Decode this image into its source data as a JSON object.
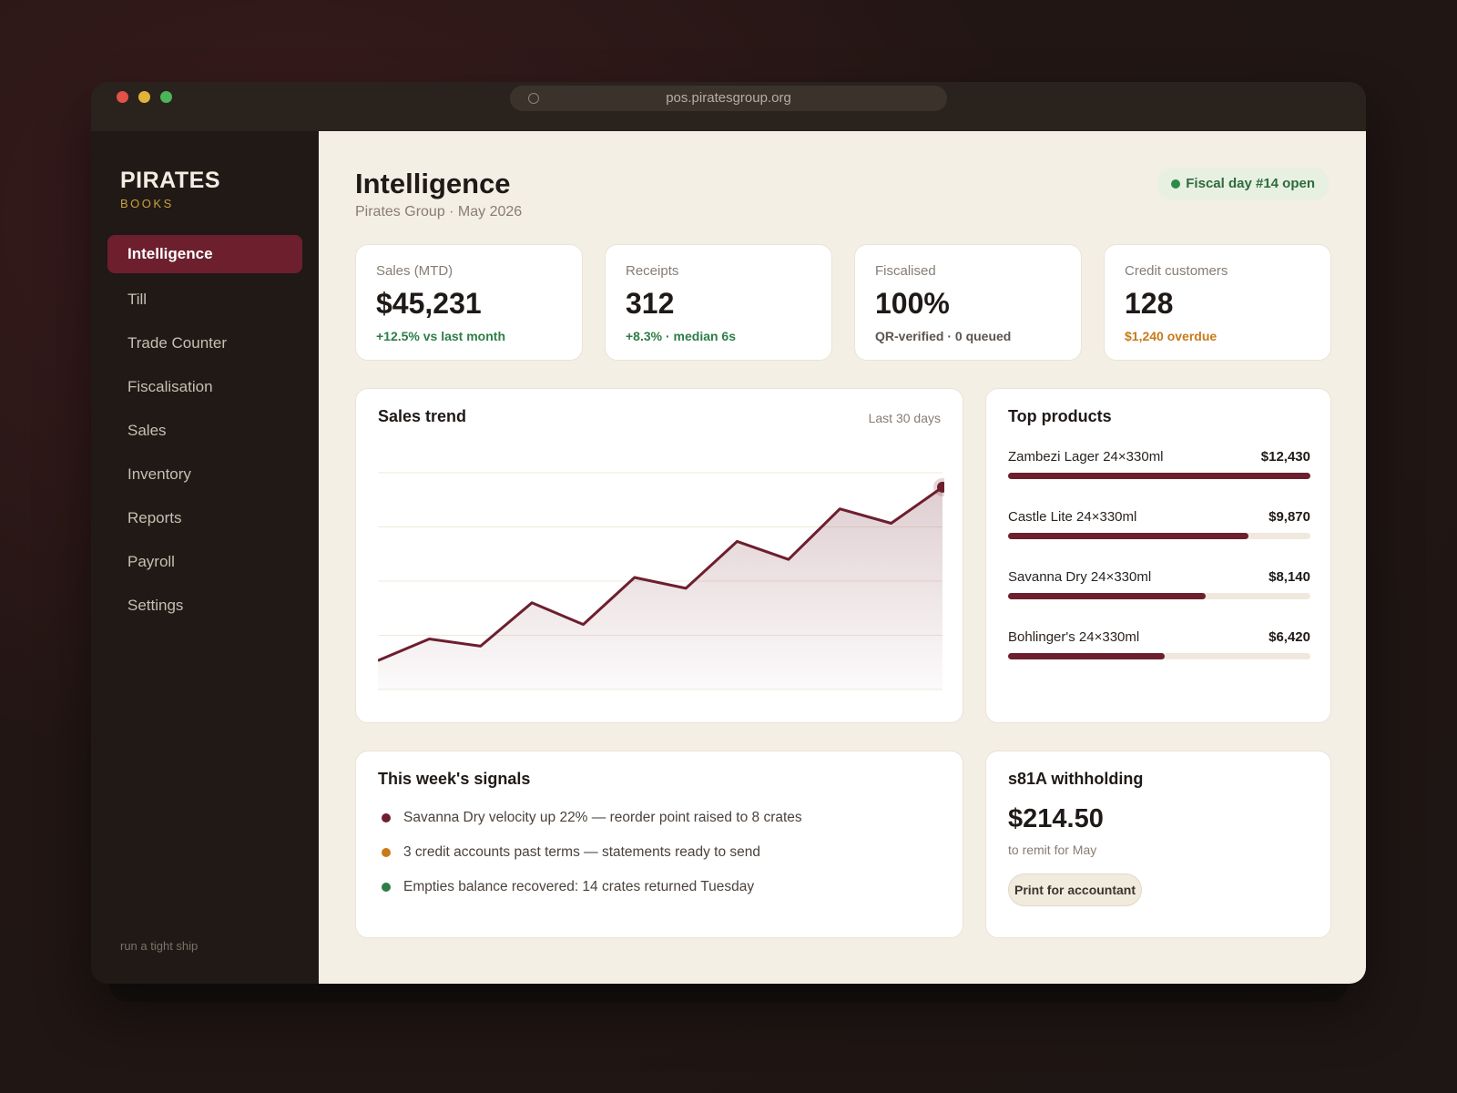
{
  "browser": {
    "url": "pos.piratesgroup.org"
  },
  "sidebar": {
    "brand_title": "PIRATES",
    "brand_subtitle": "BOOKS",
    "items": [
      {
        "label": "Intelligence",
        "active": true
      },
      {
        "label": "Till"
      },
      {
        "label": "Trade Counter"
      },
      {
        "label": "Fiscalisation"
      },
      {
        "label": "Sales"
      },
      {
        "label": "Inventory"
      },
      {
        "label": "Reports"
      },
      {
        "label": "Payroll"
      },
      {
        "label": "Settings"
      }
    ],
    "footer": "run a tight ship"
  },
  "header": {
    "title": "Intelligence",
    "subtitle": "Pirates Group · May 2026",
    "badge": "Fiscal day #14 open"
  },
  "stats": [
    {
      "label": "Sales (MTD)",
      "value": "$45,231",
      "note": "+12.5% vs last month",
      "tone": "green"
    },
    {
      "label": "Receipts",
      "value": "312",
      "note": "+8.3% · median 6s",
      "tone": "green"
    },
    {
      "label": "Fiscalised",
      "value": "100%",
      "note": "QR-verified · 0 queued",
      "tone": "dark"
    },
    {
      "label": "Credit customers",
      "value": "128",
      "note": "$1,240 overdue",
      "tone": "amber"
    }
  ],
  "sales_trend": {
    "title": "Sales trend",
    "range_label": "Last 30 days",
    "values": [
      8,
      14,
      12,
      24,
      18,
      31,
      28,
      41,
      36,
      50,
      46,
      56
    ]
  },
  "top_products": {
    "title": "Top products",
    "items": [
      {
        "name": "Zambezi Lager 24×330ml",
        "value": "$12,430",
        "share": 1.0
      },
      {
        "name": "Castle Lite 24×330ml",
        "value": "$9,870",
        "share": 0.795
      },
      {
        "name": "Savanna Dry 24×330ml",
        "value": "$8,140",
        "share": 0.655
      },
      {
        "name": "Bohlinger's 24×330ml",
        "value": "$6,420",
        "share": 0.517
      }
    ]
  },
  "signals": {
    "title": "This week's signals",
    "items": [
      {
        "text": "Savanna Dry velocity up 22% — reorder point raised to 8 crates",
        "color": "#6d1f2e"
      },
      {
        "text": "3 credit accounts past terms — statements ready to send",
        "color": "#c87a18"
      },
      {
        "text": "Empties balance recovered: 14 crates returned Tuesday",
        "color": "#2e7d46"
      }
    ]
  },
  "withholding": {
    "title": "s81A withholding",
    "value": "$214.50",
    "subtitle": "to remit for May",
    "button": "Print for accountant"
  },
  "colors": {
    "accent": "#6d1f2e",
    "positive": "#2e7d46",
    "warning": "#c87a18"
  }
}
